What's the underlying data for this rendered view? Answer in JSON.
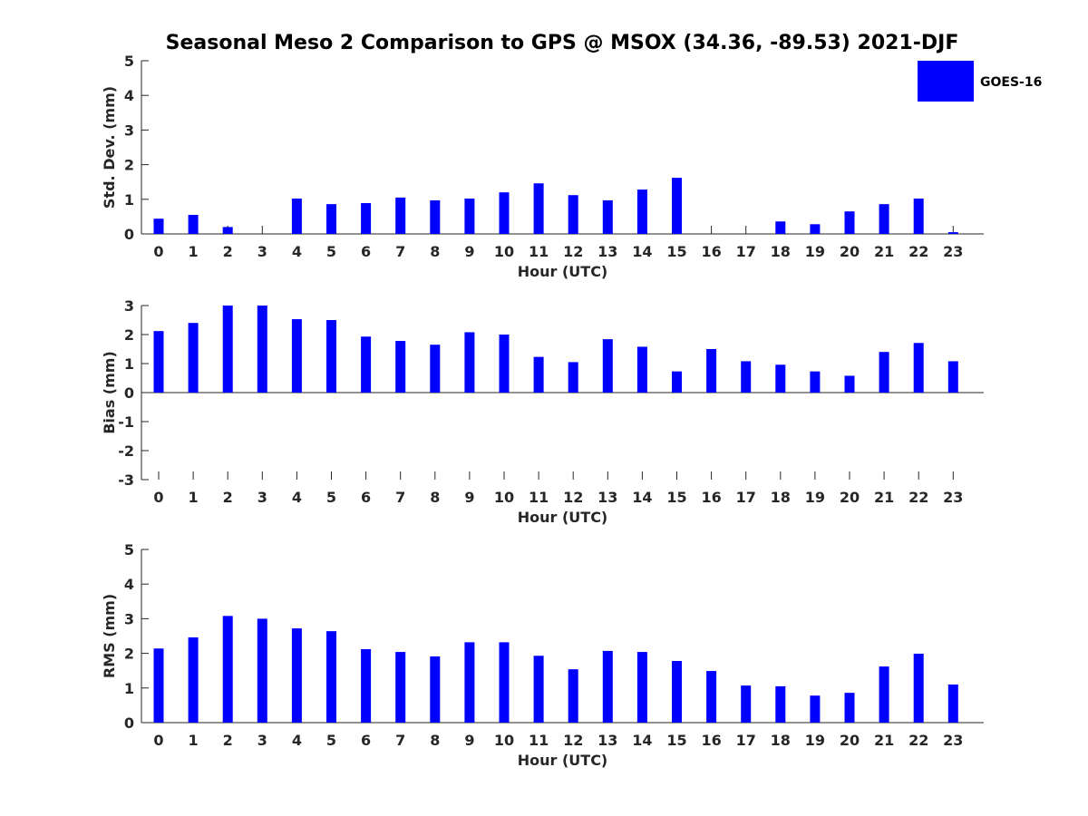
{
  "title": "Seasonal Meso 2 Comparison to GPS @ MSOX (34.36, -89.53) 2021-DJF",
  "colors": {
    "bar": "#0000ff",
    "axis": "#262626"
  },
  "legend": {
    "label": "GOES-16",
    "placement": "top-right"
  },
  "chart_data": [
    {
      "type": "bar",
      "xlabel": "Hour (UTC)",
      "ylabel": "Std. Dev. (mm)",
      "ylim": [
        0,
        5
      ],
      "yticks": [
        0,
        1,
        2,
        3,
        4,
        5
      ],
      "categories": [
        "0",
        "1",
        "2",
        "3",
        "4",
        "5",
        "6",
        "7",
        "8",
        "9",
        "10",
        "11",
        "12",
        "13",
        "14",
        "15",
        "16",
        "17",
        "18",
        "19",
        "20",
        "21",
        "22",
        "23"
      ],
      "series": [
        {
          "name": "GOES-16",
          "values": [
            0.44,
            0.55,
            0.2,
            null,
            1.02,
            0.86,
            0.89,
            1.05,
            0.97,
            1.02,
            1.2,
            1.46,
            1.12,
            0.97,
            1.28,
            1.62,
            null,
            null,
            0.36,
            0.28,
            0.65,
            0.86,
            1.02,
            0.05
          ]
        }
      ]
    },
    {
      "type": "bar",
      "xlabel": "Hour (UTC)",
      "ylabel": "Bias (mm)",
      "ylim": [
        -3,
        3
      ],
      "yticks": [
        -3,
        -2,
        -1,
        0,
        1,
        2,
        3
      ],
      "categories": [
        "0",
        "1",
        "2",
        "3",
        "4",
        "5",
        "6",
        "7",
        "8",
        "9",
        "10",
        "11",
        "12",
        "13",
        "14",
        "15",
        "16",
        "17",
        "18",
        "19",
        "20",
        "21",
        "22",
        "23"
      ],
      "series": [
        {
          "name": "GOES-16",
          "values": [
            2.12,
            2.4,
            3.0,
            3.0,
            2.53,
            2.5,
            1.93,
            1.78,
            1.65,
            2.08,
            2.0,
            1.23,
            1.05,
            1.84,
            1.58,
            0.73,
            1.5,
            1.08,
            0.96,
            0.73,
            0.58,
            1.4,
            1.71,
            1.08
          ]
        }
      ]
    },
    {
      "type": "bar",
      "xlabel": "Hour (UTC)",
      "ylabel": "RMS (mm)",
      "ylim": [
        0,
        5
      ],
      "yticks": [
        0,
        1,
        2,
        3,
        4,
        5
      ],
      "categories": [
        "0",
        "1",
        "2",
        "3",
        "4",
        "5",
        "6",
        "7",
        "8",
        "9",
        "10",
        "11",
        "12",
        "13",
        "14",
        "15",
        "16",
        "17",
        "18",
        "19",
        "20",
        "21",
        "22",
        "23"
      ],
      "series": [
        {
          "name": "GOES-16",
          "values": [
            2.14,
            2.46,
            3.08,
            3.0,
            2.72,
            2.64,
            2.12,
            2.04,
            1.91,
            2.32,
            2.32,
            1.93,
            1.54,
            2.07,
            2.04,
            1.78,
            1.49,
            1.07,
            1.05,
            0.78,
            0.86,
            1.62,
            1.99,
            1.1
          ]
        }
      ]
    }
  ]
}
